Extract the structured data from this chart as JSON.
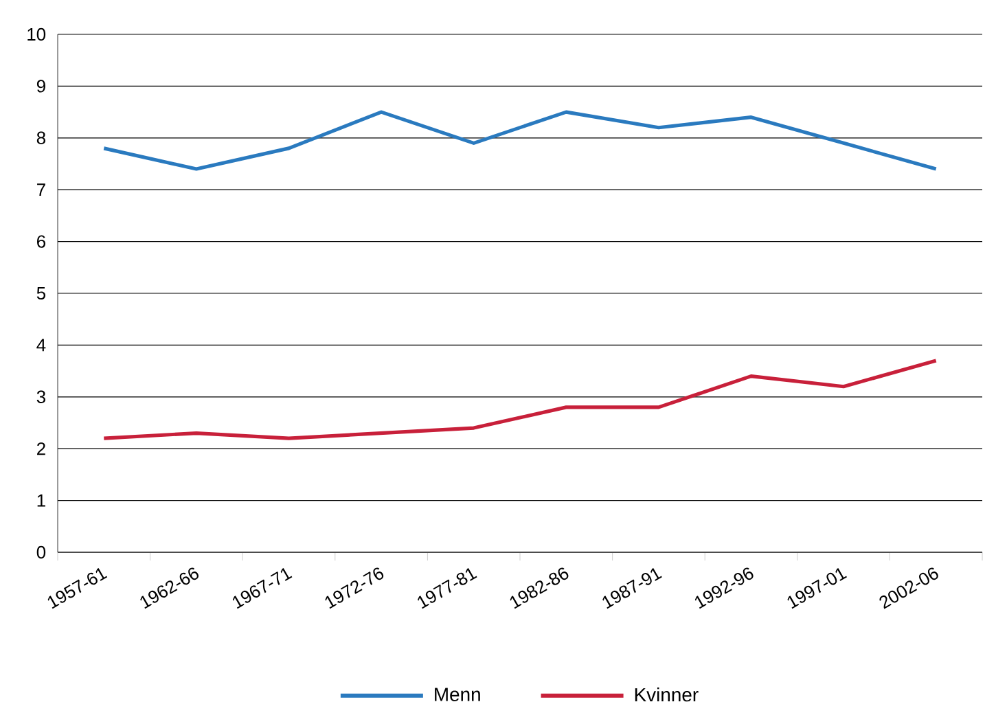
{
  "chart_data": {
    "type": "line",
    "categories": [
      "1957-61",
      "1962-66",
      "1967-71",
      "1972-76",
      "1977-81",
      "1982-86",
      "1987-91",
      "1992-96",
      "1997-01",
      "2002-06"
    ],
    "series": [
      {
        "name": "Menn",
        "color": "#2a7abf",
        "values": [
          7.8,
          7.4,
          7.8,
          8.5,
          7.9,
          8.5,
          8.2,
          8.4,
          7.9,
          7.4
        ]
      },
      {
        "name": "Kvinner",
        "color": "#c8203a",
        "values": [
          2.2,
          2.3,
          2.2,
          2.3,
          2.4,
          2.8,
          2.8,
          3.4,
          3.2,
          3.7
        ]
      }
    ],
    "ylim": [
      0,
      10
    ],
    "yticks": [
      0,
      1,
      2,
      3,
      4,
      5,
      6,
      7,
      8,
      9,
      10
    ],
    "grid": "y",
    "legend": "bottom",
    "marker": "none",
    "line_style": "solid"
  }
}
